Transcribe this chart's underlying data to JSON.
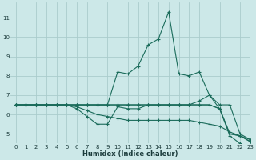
{
  "background_color": "#cce8e8",
  "grid_color": "#aacccc",
  "line_color": "#1a6b5a",
  "xlabel": "Humidex (Indice chaleur)",
  "xlim": [
    -0.5,
    23
  ],
  "ylim": [
    4.5,
    11.8
  ],
  "yticks": [
    5,
    6,
    7,
    8,
    9,
    10,
    11
  ],
  "xticks": [
    0,
    1,
    2,
    3,
    4,
    5,
    6,
    7,
    8,
    9,
    10,
    11,
    12,
    13,
    14,
    15,
    16,
    17,
    18,
    19,
    20,
    21,
    22,
    23
  ],
  "lines": [
    {
      "x": [
        0,
        1,
        2,
        3,
        4,
        5,
        6,
        7,
        8,
        9,
        10,
        11,
        12,
        13,
        14,
        15,
        16,
        17,
        18,
        19,
        20,
        21,
        22,
        23
      ],
      "y": [
        6.5,
        6.5,
        6.5,
        6.5,
        6.5,
        6.5,
        6.5,
        6.5,
        6.5,
        6.5,
        8.2,
        8.1,
        8.5,
        9.6,
        9.9,
        11.3,
        8.1,
        8.0,
        8.2,
        7.0,
        6.3,
        4.9,
        4.5,
        4.4
      ]
    },
    {
      "x": [
        0,
        1,
        2,
        3,
        4,
        5,
        6,
        7,
        8,
        9,
        10,
        11,
        12,
        13,
        14,
        15,
        16,
        17,
        18,
        19,
        20,
        21,
        22,
        23
      ],
      "y": [
        6.5,
        6.5,
        6.5,
        6.5,
        6.5,
        6.5,
        6.3,
        5.9,
        5.5,
        5.5,
        6.4,
        6.3,
        6.3,
        6.5,
        6.5,
        6.5,
        6.5,
        6.5,
        6.5,
        6.5,
        6.3,
        5.0,
        4.9,
        4.6
      ]
    },
    {
      "x": [
        0,
        1,
        2,
        3,
        4,
        5,
        6,
        7,
        8,
        9,
        10,
        11,
        12,
        13,
        14,
        15,
        16,
        17,
        18,
        19,
        20,
        21,
        22,
        23
      ],
      "y": [
        6.5,
        6.5,
        6.5,
        6.5,
        6.5,
        6.5,
        6.4,
        6.2,
        6.0,
        5.9,
        5.8,
        5.7,
        5.7,
        5.7,
        5.7,
        5.7,
        5.7,
        5.7,
        5.6,
        5.5,
        5.4,
        5.1,
        4.9,
        4.7
      ]
    },
    {
      "x": [
        0,
        1,
        2,
        3,
        4,
        5,
        6,
        7,
        8,
        9,
        10,
        11,
        12,
        13,
        14,
        15,
        16,
        17,
        18,
        19,
        20,
        21,
        22,
        23
      ],
      "y": [
        6.5,
        6.5,
        6.5,
        6.5,
        6.5,
        6.5,
        6.5,
        6.5,
        6.5,
        6.5,
        6.5,
        6.5,
        6.5,
        6.5,
        6.5,
        6.5,
        6.5,
        6.5,
        6.7,
        7.0,
        6.5,
        6.5,
        5.0,
        4.7
      ]
    },
    {
      "x": [
        0,
        1,
        2,
        3,
        4,
        5,
        6,
        7,
        8,
        9,
        10,
        11,
        12,
        13,
        14,
        15,
        16,
        17,
        18,
        19,
        20,
        21,
        22,
        23
      ],
      "y": [
        6.5,
        6.5,
        6.5,
        6.5,
        6.5,
        6.5,
        6.5,
        6.5,
        6.5,
        6.5,
        6.5,
        6.5,
        6.5,
        6.5,
        6.5,
        6.5,
        6.5,
        6.5,
        6.5,
        6.5,
        6.3,
        5.0,
        4.9,
        4.6
      ]
    }
  ]
}
